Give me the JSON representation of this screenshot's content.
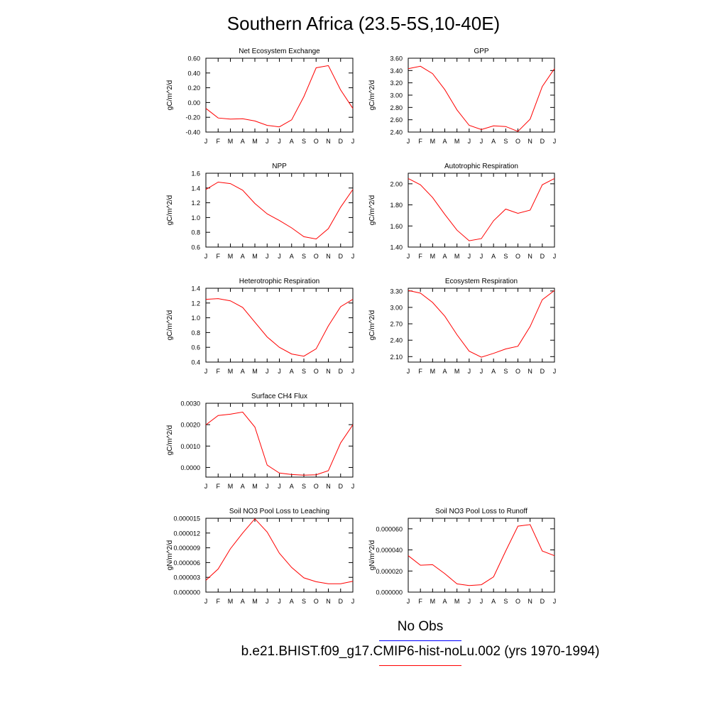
{
  "title": "Southern Africa (23.5-5S,10-40E)",
  "legend": {
    "obs_label": "No Obs",
    "obs_color": "#0000ff",
    "run_label": "b.e21.BHIST.f09_g17.CMIP6-hist-noLu.002 (yrs 1970-1994)",
    "run_color": "#ff0000"
  },
  "chart_data": [
    {
      "type": "line",
      "title": "Net Ecosystem Exchange",
      "ylabel": "gC/m^2/d",
      "x": [
        "J",
        "F",
        "M",
        "A",
        "M",
        "J",
        "J",
        "A",
        "S",
        "O",
        "N",
        "D",
        "J"
      ],
      "ylim": [
        -0.4,
        0.6
      ],
      "yticks": [
        "-0.40",
        "-0.20",
        "0.00",
        "0.20",
        "0.40",
        "0.60"
      ],
      "series": [
        {
          "color": "#ff0000",
          "values": [
            -0.08,
            -0.21,
            -0.225,
            -0.22,
            -0.25,
            -0.31,
            -0.33,
            -0.235,
            0.08,
            0.47,
            0.5,
            0.17,
            -0.08
          ]
        }
      ]
    },
    {
      "type": "line",
      "title": "GPP",
      "ylabel": "gC/m^2/d",
      "x": [
        "J",
        "F",
        "M",
        "A",
        "M",
        "J",
        "J",
        "A",
        "S",
        "O",
        "N",
        "D",
        "J"
      ],
      "ylim": [
        2.4,
        3.6
      ],
      "yticks": [
        "2.40",
        "2.60",
        "2.80",
        "3.00",
        "3.20",
        "3.40",
        "3.60"
      ],
      "series": [
        {
          "color": "#ff0000",
          "values": [
            3.43,
            3.47,
            3.35,
            3.09,
            2.76,
            2.51,
            2.44,
            2.5,
            2.49,
            2.41,
            2.61,
            3.14,
            3.43
          ]
        }
      ]
    },
    {
      "type": "line",
      "title": "NPP",
      "ylabel": "gC/m^2/d",
      "x": [
        "J",
        "F",
        "M",
        "A",
        "M",
        "J",
        "J",
        "A",
        "S",
        "O",
        "N",
        "D",
        "J"
      ],
      "ylim": [
        0.6,
        1.6
      ],
      "yticks": [
        "0.6",
        "0.8",
        "1.0",
        "1.2",
        "1.4",
        "1.6"
      ],
      "series": [
        {
          "color": "#ff0000",
          "values": [
            1.38,
            1.48,
            1.46,
            1.37,
            1.19,
            1.05,
            0.96,
            0.86,
            0.74,
            0.71,
            0.85,
            1.14,
            1.38
          ]
        }
      ]
    },
    {
      "type": "line",
      "title": "Autotrophic Respiration",
      "ylabel": "gC/m^2/d",
      "x": [
        "J",
        "F",
        "M",
        "A",
        "M",
        "J",
        "J",
        "A",
        "S",
        "O",
        "N",
        "D",
        "J"
      ],
      "ylim": [
        1.4,
        2.1
      ],
      "yticks": [
        "1.40",
        "1.60",
        "1.80",
        "2.00"
      ],
      "series": [
        {
          "color": "#ff0000",
          "values": [
            2.05,
            1.99,
            1.87,
            1.71,
            1.56,
            1.46,
            1.48,
            1.65,
            1.76,
            1.72,
            1.75,
            1.99,
            2.05
          ]
        }
      ]
    },
    {
      "type": "line",
      "title": "Heterotrophic Respiration",
      "ylabel": "gC/m^2/d",
      "x": [
        "J",
        "F",
        "M",
        "A",
        "M",
        "J",
        "J",
        "A",
        "S",
        "O",
        "N",
        "D",
        "J"
      ],
      "ylim": [
        0.4,
        1.4
      ],
      "yticks": [
        "0.4",
        "0.6",
        "0.8",
        "1.0",
        "1.2",
        "1.4"
      ],
      "series": [
        {
          "color": "#ff0000",
          "values": [
            1.25,
            1.26,
            1.23,
            1.14,
            0.94,
            0.74,
            0.6,
            0.51,
            0.48,
            0.58,
            0.89,
            1.15,
            1.25
          ]
        }
      ]
    },
    {
      "type": "line",
      "title": "Ecosystem Respiration",
      "ylabel": "gC/m^2/d",
      "x": [
        "J",
        "F",
        "M",
        "A",
        "M",
        "J",
        "J",
        "A",
        "S",
        "O",
        "N",
        "D",
        "J"
      ],
      "ylim": [
        2.0,
        3.35
      ],
      "yticks": [
        "2.10",
        "2.40",
        "2.70",
        "3.00",
        "3.30"
      ],
      "series": [
        {
          "color": "#ff0000",
          "values": [
            3.31,
            3.26,
            3.09,
            2.84,
            2.5,
            2.2,
            2.09,
            2.16,
            2.24,
            2.29,
            2.65,
            3.14,
            3.31
          ]
        }
      ]
    },
    {
      "type": "line",
      "title": "Surface CH4 Flux",
      "ylabel": "gC/m^2/d",
      "x": [
        "J",
        "F",
        "M",
        "A",
        "M",
        "J",
        "J",
        "A",
        "S",
        "O",
        "N",
        "D",
        "J"
      ],
      "ylim": [
        -0.00045,
        0.003
      ],
      "yticks": [
        "0.0000",
        "0.0010",
        "0.0020",
        "0.0030"
      ],
      "series": [
        {
          "color": "#ff0000",
          "values": [
            0.00199,
            0.00243,
            0.00249,
            0.00259,
            0.00189,
            0.00011,
            -0.00026,
            -0.00033,
            -0.00036,
            -0.00034,
            -0.00015,
            0.00115,
            0.00199
          ]
        }
      ]
    },
    {
      "type": "line",
      "title": "Soil NO3 Pool Loss to Leaching",
      "ylabel": "gN/m^2/d",
      "x": [
        "J",
        "F",
        "M",
        "A",
        "M",
        "J",
        "J",
        "A",
        "S",
        "O",
        "N",
        "D",
        "J"
      ],
      "ylim": [
        0.0,
        1.5e-05
      ],
      "yticks": [
        "0.000000",
        "0.000003",
        "0.000006",
        "0.000009",
        "0.000012",
        "0.000015"
      ],
      "series": [
        {
          "color": "#ff0000",
          "values": [
            2.4e-06,
            4.7e-06,
            8.8e-06,
            1.2e-05,
            1.49e-05,
            1.22e-05,
            7.9e-06,
            5e-06,
            2.9e-06,
            2.1e-06,
            1.7e-06,
            1.7e-06,
            2.2e-06
          ]
        }
      ]
    },
    {
      "type": "line",
      "title": "Soil NO3 Pool Loss to Runoff",
      "ylabel": "gN/m^2/d",
      "x": [
        "J",
        "F",
        "M",
        "A",
        "M",
        "J",
        "J",
        "A",
        "S",
        "O",
        "N",
        "D",
        "J"
      ],
      "ylim": [
        0.0,
        7e-05
      ],
      "yticks": [
        "0.000000",
        "0.000020",
        "0.000040",
        "0.000060"
      ],
      "series": [
        {
          "color": "#ff0000",
          "values": [
            3.45e-05,
            2.55e-05,
            2.6e-05,
            1.75e-05,
            7.8e-06,
            6.2e-06,
            7e-06,
            1.45e-05,
            3.9e-05,
            6.25e-05,
            6.4e-05,
            3.9e-05,
            3.45e-05
          ]
        }
      ]
    }
  ]
}
